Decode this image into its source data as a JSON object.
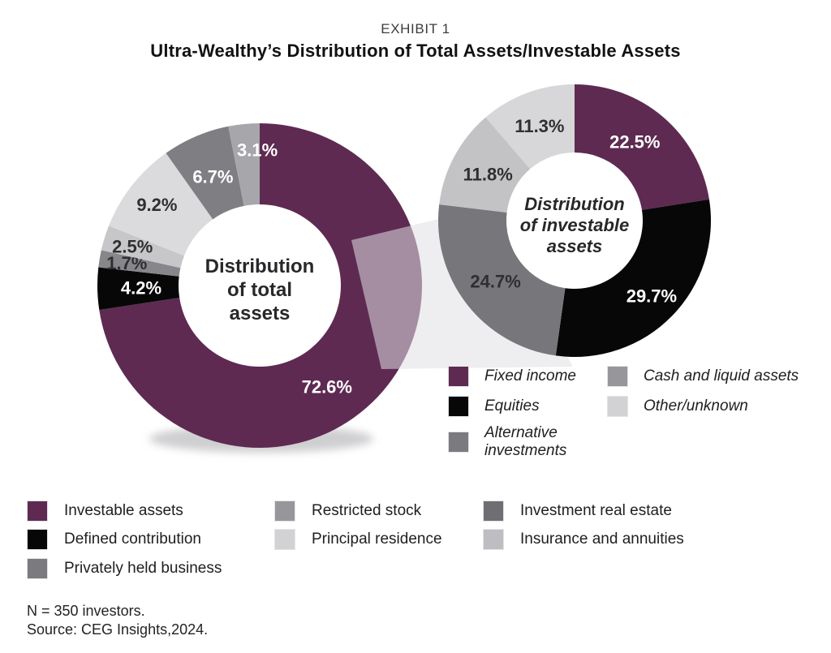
{
  "header": {
    "eyebrow": "EXHIBIT 1",
    "title": "Ultra-Wealthy’s Distribution of Total Assets/Investable Assets"
  },
  "chart_data": [
    {
      "type": "pie",
      "variant": "donut",
      "title": "Distribution of total assets",
      "center_lines": [
        "Distribution",
        "of total",
        "assets"
      ],
      "units": "%",
      "segments": [
        {
          "label": "Investable assets",
          "value": 72.6,
          "display": "72.6%",
          "color": "#5e2a52",
          "label_color": "#ffffff"
        },
        {
          "label": "Defined contribution",
          "value": 4.2,
          "display": "4.2%",
          "color": "#070708",
          "label_color": "#ffffff"
        },
        {
          "label": "Privately held business",
          "value": 1.7,
          "display": "1.7%",
          "color": "#87878b",
          "label_color": "#2f2f32"
        },
        {
          "label": "Restricted stock",
          "value": 2.5,
          "display": "2.5%",
          "color": "#c7c7ca",
          "label_color": "#2f2f32"
        },
        {
          "label": "Principal residence",
          "value": 9.2,
          "display": "9.2%",
          "color": "#dbdbdd",
          "label_color": "#2f2f32"
        },
        {
          "label": "Investment real estate",
          "value": 6.7,
          "display": "6.7%",
          "color": "#7f7f83",
          "label_color": "#ffffff"
        },
        {
          "label": "Insurance and annuities",
          "value": 3.1,
          "display": "3.1%",
          "color": "#a7a7ab",
          "label_color": "#ffffff"
        }
      ]
    },
    {
      "type": "pie",
      "variant": "donut",
      "title": "Distribution of investable assets",
      "center_lines": [
        "Distribution",
        "of investable",
        "assets"
      ],
      "units": "%",
      "segments": [
        {
          "label": "Fixed income",
          "value": 22.5,
          "display": "22.5%",
          "color": "#5e2a52",
          "label_color": "#ffffff"
        },
        {
          "label": "Equities",
          "value": 29.7,
          "display": "29.7%",
          "color": "#070708",
          "label_color": "#ffffff"
        },
        {
          "label": "Alternative investments",
          "value": 24.7,
          "display": "24.7%",
          "color": "#77777b",
          "label_color": "#2f2f32"
        },
        {
          "label": "Cash and liquid assets",
          "value": 11.8,
          "display": "11.8%",
          "color": "#c3c3c6",
          "label_color": "#2f2f32"
        },
        {
          "label": "Other/unknown",
          "value": 11.3,
          "display": "11.3%",
          "color": "#d7d7d9",
          "label_color": "#2f2f32"
        }
      ]
    }
  ],
  "legend_investable": {
    "items": [
      {
        "label": "Fixed income",
        "color": "#5e2a52"
      },
      {
        "label": "Equities",
        "color": "#070708"
      },
      {
        "label": "Alternative investments",
        "color": "#7b7b7f"
      },
      {
        "label": "Cash and liquid assets",
        "color": "#97979b"
      },
      {
        "label": "Other/unknown",
        "color": "#d2d2d4"
      }
    ]
  },
  "legend_total": {
    "items": [
      {
        "label": "Investable assets",
        "color": "#5e2a52"
      },
      {
        "label": "Defined contribution",
        "color": "#070708"
      },
      {
        "label": "Privately held business",
        "color": "#7b7b7f"
      },
      {
        "label": "Restricted stock",
        "color": "#97979b"
      },
      {
        "label": "Principal residence",
        "color": "#d2d2d4"
      },
      {
        "label": "Investment real estate",
        "color": "#6f6f73"
      },
      {
        "label": "Insurance and annuities",
        "color": "#bebec2"
      }
    ]
  },
  "footer": {
    "sample": "N = 350 investors.",
    "source": "Source: CEG Insights,2024."
  }
}
